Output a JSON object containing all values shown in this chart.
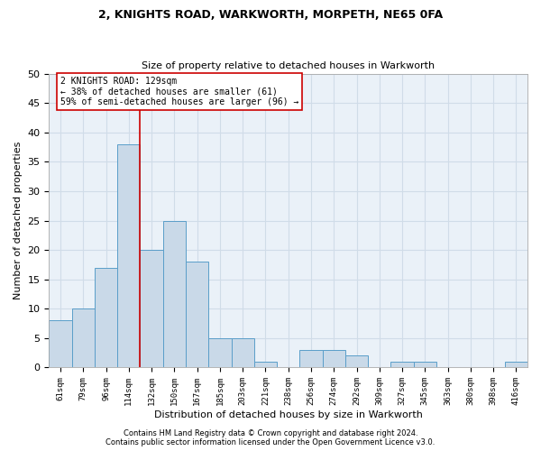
{
  "title1": "2, KNIGHTS ROAD, WARKWORTH, MORPETH, NE65 0FA",
  "title2": "Size of property relative to detached houses in Warkworth",
  "xlabel": "Distribution of detached houses by size in Warkworth",
  "ylabel": "Number of detached properties",
  "bin_labels": [
    "61sqm",
    "79sqm",
    "96sqm",
    "114sqm",
    "132sqm",
    "150sqm",
    "167sqm",
    "185sqm",
    "203sqm",
    "221sqm",
    "238sqm",
    "256sqm",
    "274sqm",
    "292sqm",
    "309sqm",
    "327sqm",
    "345sqm",
    "363sqm",
    "380sqm",
    "398sqm",
    "416sqm"
  ],
  "bar_values": [
    8,
    10,
    17,
    38,
    20,
    25,
    18,
    5,
    5,
    1,
    0,
    3,
    3,
    2,
    0,
    1,
    1,
    0,
    0,
    0,
    1
  ],
  "bar_color": "#c9d9e8",
  "bar_edge_color": "#5a9ec9",
  "property_line_index": 4,
  "property_line_color": "#cc0000",
  "annotation_text": "2 KNIGHTS ROAD: 129sqm\n← 38% of detached houses are smaller (61)\n59% of semi-detached houses are larger (96) →",
  "annotation_box_color": "#ffffff",
  "annotation_box_edge_color": "#cc0000",
  "ylim": [
    0,
    50
  ],
  "yticks": [
    0,
    5,
    10,
    15,
    20,
    25,
    30,
    35,
    40,
    45,
    50
  ],
  "grid_color": "#d0dce8",
  "bg_color": "#eaf1f8",
  "footer1": "Contains HM Land Registry data © Crown copyright and database right 2024.",
  "footer2": "Contains public sector information licensed under the Open Government Licence v3.0."
}
